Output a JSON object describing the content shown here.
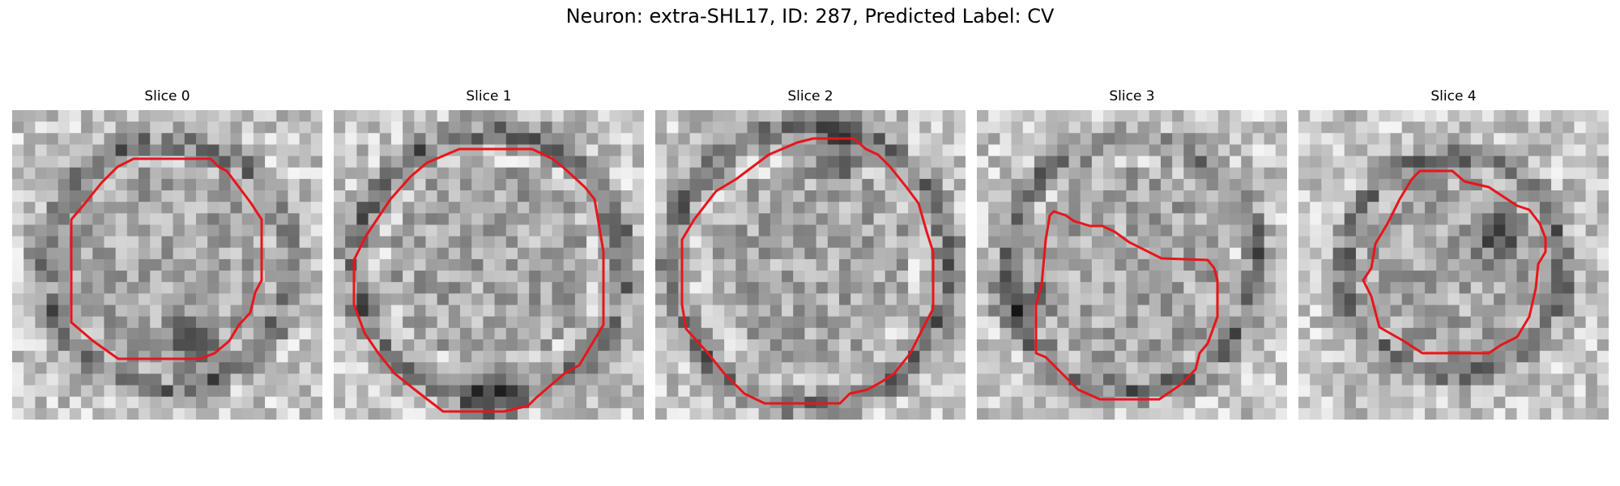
{
  "figure": {
    "title": "Neuron: extra-SHL17, ID: 287, Predicted Label: CV",
    "outline_color": "#e8151b",
    "colormap": "gray"
  },
  "panels": [
    {
      "title": "Slice 0",
      "seed": 11,
      "dark_ring": 0.43,
      "dark_blob": [
        0.55,
        0.72
      ]
    },
    {
      "title": "Slice 1",
      "seed": 23,
      "dark_ring": 0.47,
      "dark_blob": [
        0.5,
        0.9
      ]
    },
    {
      "title": "Slice 2",
      "seed": 37,
      "dark_ring": 0.49,
      "dark_blob": [
        0.57,
        0.12
      ]
    },
    {
      "title": "Slice 3",
      "seed": 51,
      "dark_ring": 0.44,
      "dark_blob": [
        0.12,
        0.6
      ]
    },
    {
      "title": "Slice 4",
      "seed": 73,
      "dark_ring": 0.38,
      "dark_blob": [
        0.62,
        0.38
      ]
    }
  ]
}
